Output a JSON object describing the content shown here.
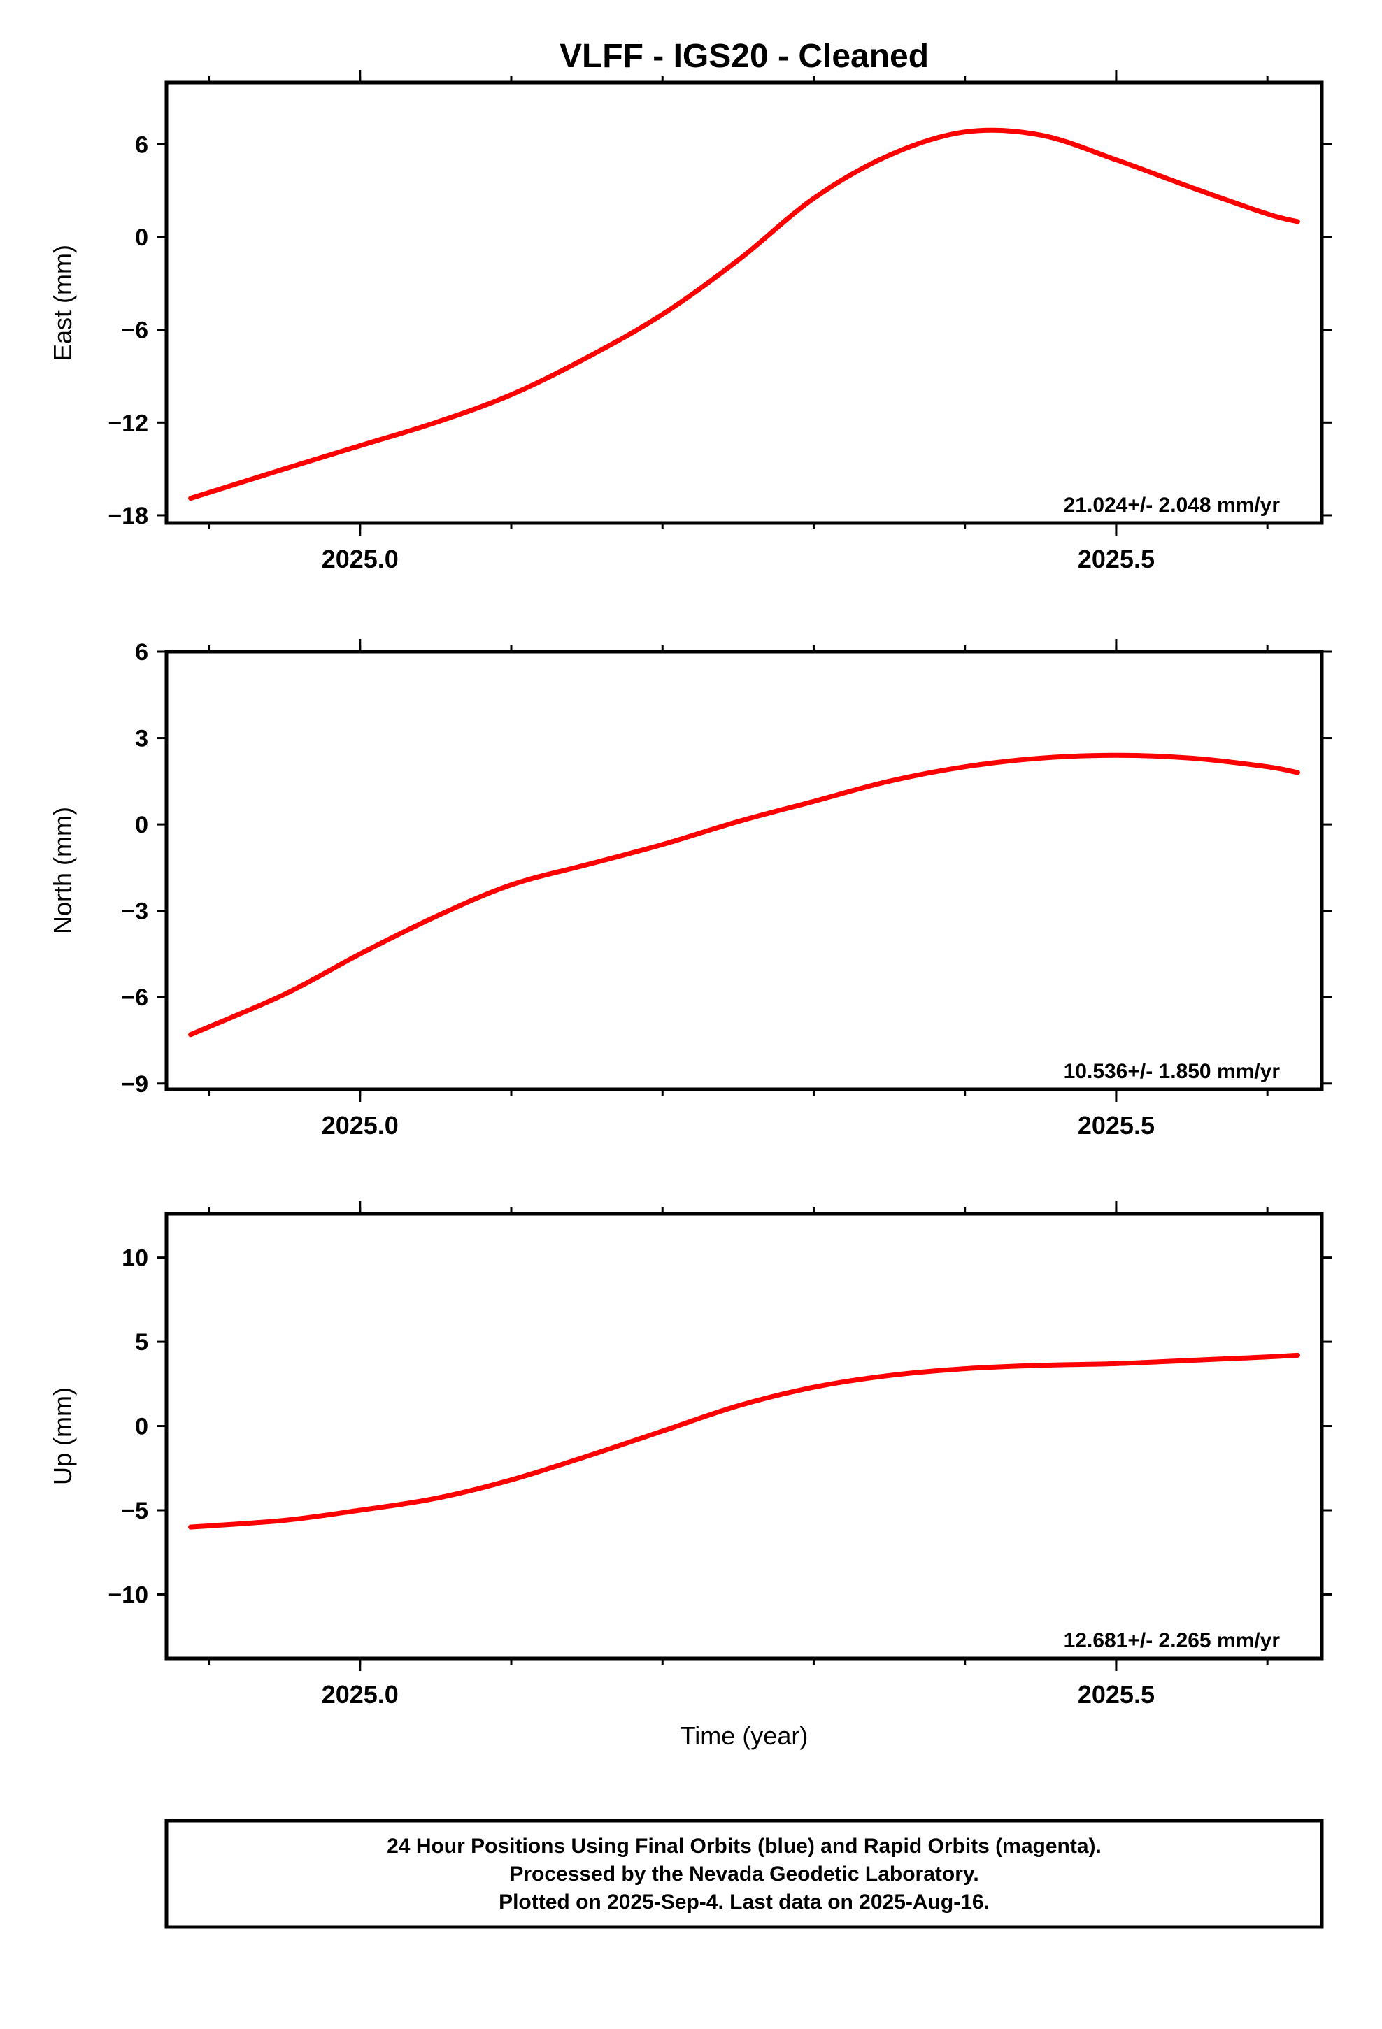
{
  "title": "VLFF  - IGS20 - Cleaned",
  "xlabel": "Time (year)",
  "caption_lines": [
    "24 Hour Positions Using Final Orbits (blue) and Rapid Orbits (magenta).",
    "Processed by the Nevada Geodetic Laboratory.",
    "Plotted on 2025-Sep-4. Last data on 2025-Aug-16."
  ],
  "colors": {
    "points": "#0000ff",
    "fit": "#ff0000",
    "frame": "#000000"
  },
  "chart_data": [
    {
      "type": "scatter",
      "ylabel": "East (mm)",
      "rate_label": "21.024+/- 2.048 mm/yr",
      "xlim": [
        2024.872,
        2025.636
      ],
      "ylim": [
        -18.5,
        10
      ],
      "x_ticks": [
        2025.0,
        2025.5
      ],
      "x_tick_labels": [
        "2025.0",
        "2025.5"
      ],
      "y_ticks": [
        -18,
        -12,
        -6,
        0,
        6
      ],
      "y_tick_labels": [
        "−18",
        "−12",
        "−6",
        "0",
        "6"
      ],
      "fit": {
        "x": [
          2024.888,
          2024.95,
          2025.0,
          2025.05,
          2025.1,
          2025.15,
          2025.2,
          2025.25,
          2025.3,
          2025.35,
          2025.4,
          2025.45,
          2025.5,
          2025.55,
          2025.6,
          2025.62
        ],
        "y": [
          -16.9,
          -15.0,
          -13.5,
          -12.0,
          -10.2,
          -7.8,
          -5.0,
          -1.5,
          2.5,
          5.3,
          6.8,
          6.6,
          5.0,
          3.2,
          1.5,
          1.0
        ]
      }
    },
    {
      "type": "scatter",
      "ylabel": "North (mm)",
      "rate_label": "10.536+/- 1.850 mm/yr",
      "xlim": [
        2024.872,
        2025.636
      ],
      "ylim": [
        -9.2,
        6
      ],
      "x_ticks": [
        2025.0,
        2025.5
      ],
      "x_tick_labels": [
        "2025.0",
        "2025.5"
      ],
      "y_ticks": [
        -9,
        -6,
        -3,
        0,
        3,
        6
      ],
      "y_tick_labels": [
        "−9",
        "−6",
        "−3",
        "0",
        "3",
        "6"
      ],
      "fit": {
        "x": [
          2024.888,
          2024.95,
          2025.0,
          2025.05,
          2025.1,
          2025.15,
          2025.2,
          2025.25,
          2025.3,
          2025.35,
          2025.4,
          2025.45,
          2025.5,
          2025.55,
          2025.6,
          2025.62
        ],
        "y": [
          -7.3,
          -5.9,
          -4.5,
          -3.2,
          -2.1,
          -1.4,
          -0.7,
          0.1,
          0.8,
          1.5,
          2.0,
          2.3,
          2.4,
          2.3,
          2.0,
          1.8
        ]
      }
    },
    {
      "type": "scatter",
      "ylabel": "Up (mm)",
      "rate_label": "12.681+/- 2.265 mm/yr",
      "xlim": [
        2024.872,
        2025.636
      ],
      "ylim": [
        -13.8,
        12.6
      ],
      "x_ticks": [
        2025.0,
        2025.5
      ],
      "x_tick_labels": [
        "2025.0",
        "2025.5"
      ],
      "y_ticks": [
        -10,
        -5,
        0,
        5,
        10
      ],
      "y_tick_labels": [
        "−10",
        "−5",
        "0",
        "5",
        "10"
      ],
      "fit": {
        "x": [
          2024.888,
          2024.95,
          2025.0,
          2025.05,
          2025.1,
          2025.15,
          2025.2,
          2025.25,
          2025.3,
          2025.35,
          2025.4,
          2025.45,
          2025.5,
          2025.55,
          2025.6,
          2025.62
        ],
        "y": [
          -6.0,
          -5.6,
          -5.0,
          -4.3,
          -3.2,
          -1.8,
          -0.3,
          1.2,
          2.3,
          3.0,
          3.4,
          3.6,
          3.7,
          3.9,
          4.1,
          4.2
        ]
      }
    }
  ]
}
